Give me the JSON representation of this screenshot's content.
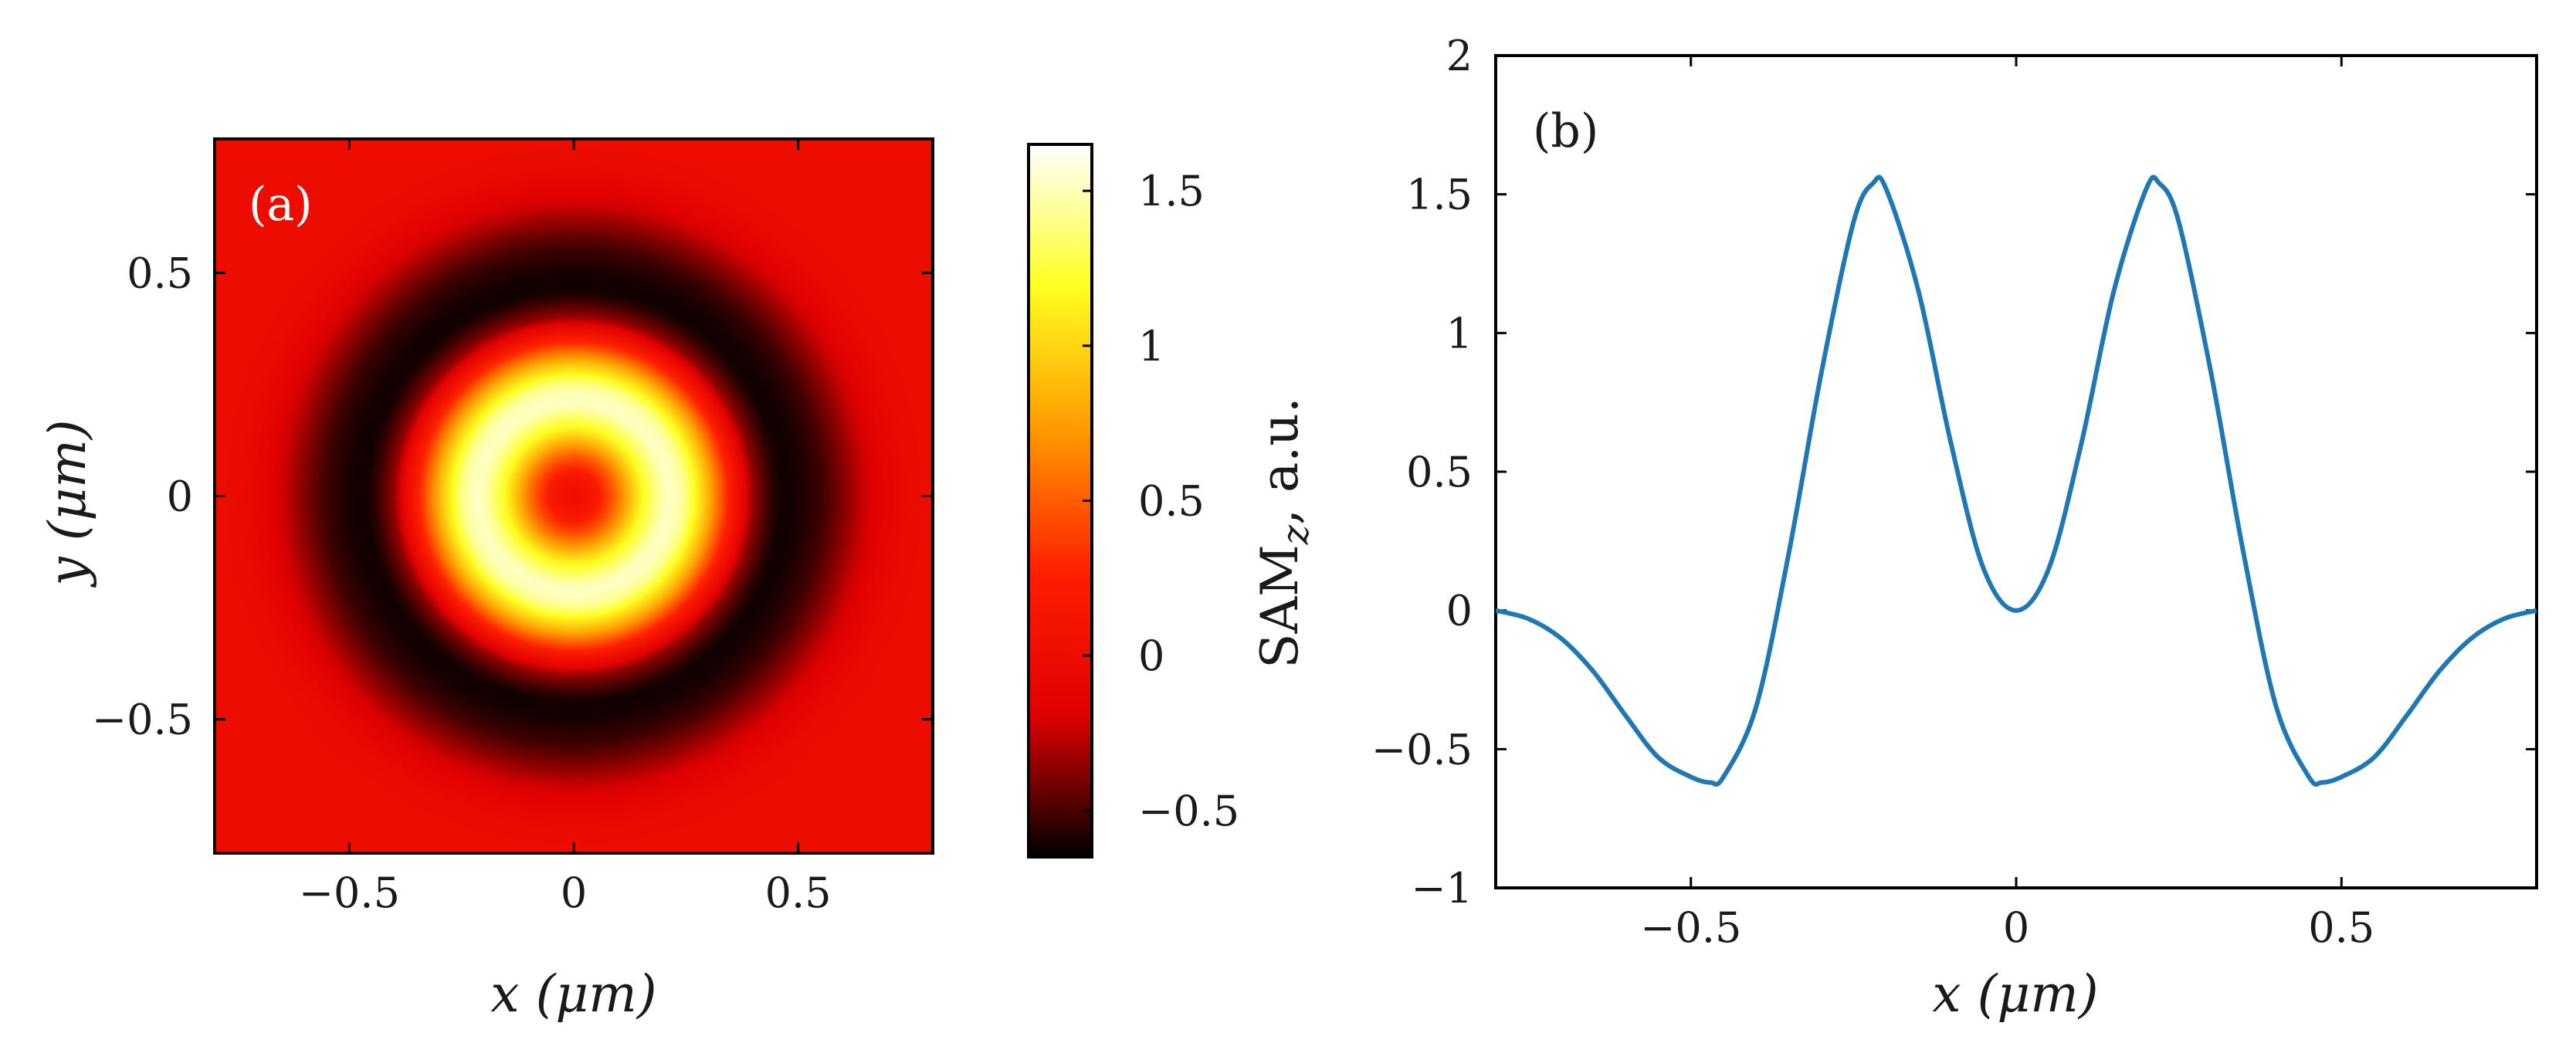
{
  "chart_data": [
    {
      "type": "heatmap",
      "panel": "(a)",
      "title": "",
      "xlabel": "x (μm)",
      "ylabel": "y (μm)",
      "xlim": [
        -0.8,
        0.8
      ],
      "ylim": [
        -0.8,
        0.8
      ],
      "x_ticks": [
        -0.5,
        0,
        0.5
      ],
      "x_tick_labels": [
        "−0.5",
        "0",
        "0.5"
      ],
      "y_ticks": [
        -0.5,
        0,
        0.5
      ],
      "y_tick_labels": [
        "−0.5",
        "0",
        "0.5"
      ],
      "colorbar": {
        "label": "SAM_z, a.u.",
        "label_main": "SAM",
        "label_sub": "z",
        "label_tail": ", a.u.",
        "colormap": "hot",
        "range": [
          -0.65,
          1.65
        ],
        "ticks": [
          -0.5,
          0,
          0.5,
          1,
          1.5
        ],
        "tick_labels": [
          "−0.5",
          "0",
          "0.5",
          "1",
          "1.5"
        ],
        "colors": [
          "#000000",
          "#e00000",
          "#ff2000",
          "#ff9a00",
          "#ffff20",
          "#ffffff"
        ]
      },
      "profile": "radially symmetric; same as panel (b) SAM_z(r)",
      "values": []
    },
    {
      "type": "line",
      "panel": "(b)",
      "title": "",
      "xlabel": "x (μm)",
      "ylabel": "",
      "xlim": [
        -0.8,
        0.8
      ],
      "ylim": [
        -1,
        2
      ],
      "x_ticks": [
        -0.5,
        0,
        0.5
      ],
      "x_tick_labels": [
        "−0.5",
        "0",
        "0.5"
      ],
      "y_ticks": [
        -1,
        -0.5,
        0,
        0.5,
        1,
        1.5,
        2
      ],
      "y_tick_labels": [
        "−1",
        "−0.5",
        "0",
        "0.5",
        "1",
        "1.5",
        "2"
      ],
      "series": [
        {
          "name": "SAM_z",
          "color": "#1f77b4",
          "x": [
            -0.8,
            -0.75,
            -0.7,
            -0.65,
            -0.6,
            -0.55,
            -0.5,
            -0.47,
            -0.45,
            -0.4,
            -0.35,
            -0.3,
            -0.25,
            -0.22,
            -0.2,
            -0.15,
            -0.1,
            -0.05,
            0,
            0.05,
            0.1,
            0.15,
            0.2,
            0.22,
            0.25,
            0.3,
            0.35,
            0.4,
            0.45,
            0.47,
            0.5,
            0.55,
            0.6,
            0.65,
            0.7,
            0.75,
            0.8
          ],
          "values": [
            0.0,
            -0.03,
            -0.1,
            -0.22,
            -0.38,
            -0.53,
            -0.6,
            -0.62,
            -0.6,
            -0.35,
            0.2,
            0.85,
            1.4,
            1.54,
            1.52,
            1.15,
            0.6,
            0.15,
            0.0,
            0.15,
            0.6,
            1.15,
            1.52,
            1.54,
            1.4,
            0.85,
            0.2,
            -0.35,
            -0.6,
            -0.62,
            -0.6,
            -0.53,
            -0.38,
            -0.22,
            -0.1,
            -0.03,
            0.0
          ]
        }
      ]
    }
  ]
}
